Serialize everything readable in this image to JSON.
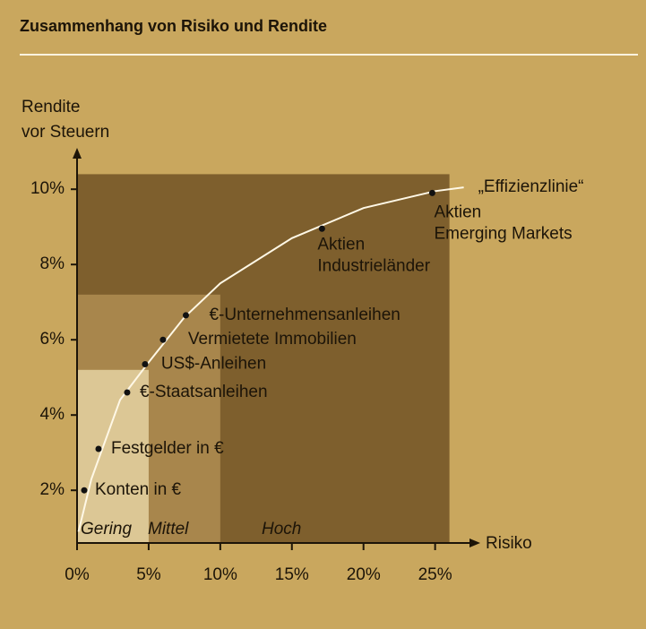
{
  "chart_data": {
    "type": "scatter",
    "title": "Zusammenhang von Risiko und Rendite",
    "y_label": [
      "Rendite",
      "vor Steuern"
    ],
    "x_label": "Risiko",
    "xlim": [
      0,
      27.4
    ],
    "ylim": [
      0.6,
      11.1
    ],
    "xticks": [
      {
        "value": 0,
        "label": "0%"
      },
      {
        "value": 5,
        "label": "5%"
      },
      {
        "value": 10,
        "label": "10%"
      },
      {
        "value": 15,
        "label": "15%"
      },
      {
        "value": 20,
        "label": "20%"
      },
      {
        "value": 25,
        "label": "25%"
      }
    ],
    "yticks": [
      {
        "value": 2,
        "label": "2%"
      },
      {
        "value": 4,
        "label": "4%"
      },
      {
        "value": 6,
        "label": "6%"
      },
      {
        "value": 8,
        "label": "8%"
      },
      {
        "value": 10,
        "label": "10%"
      }
    ],
    "zones": [
      {
        "label": "Hoch",
        "x": [
          0,
          26
        ],
        "y_max": 10.4,
        "color": "#7e5f2d"
      },
      {
        "label": "Mittel",
        "x": [
          0,
          10
        ],
        "y_max": 7.2,
        "color": "#a8864c"
      },
      {
        "label": "Gering",
        "x": [
          0,
          5
        ],
        "y_max": 5.2,
        "color": "#dcc795"
      }
    ],
    "series": [
      {
        "name": "„Effizienzlinie“",
        "type": "line",
        "color": "#fff8e6",
        "x": [
          0.1,
          1,
          3,
          5,
          7.5,
          10,
          15,
          20,
          25,
          27
        ],
        "values": [
          0.9,
          2.3,
          4.4,
          5.4,
          6.6,
          7.5,
          8.7,
          9.5,
          9.95,
          10.05
        ]
      },
      {
        "type": "scatter",
        "color": "#111111",
        "x": [
          0.5,
          1.5,
          3.5,
          4.75,
          6,
          7.6,
          17.1,
          24.8
        ],
        "values": [
          2.0,
          3.1,
          4.6,
          5.35,
          6.0,
          6.65,
          8.95,
          9.9
        ],
        "labels": [
          [
            "Konten in €"
          ],
          [
            "Festgelder in €"
          ],
          [
            "€-Staatsanleihen"
          ],
          [
            "US$-Anleihen"
          ],
          [
            "Vermietete Immobilien"
          ],
          [
            "€-Unternehmensanleihen"
          ],
          [
            "Aktien",
            "Industrieländer"
          ],
          [
            "Aktien",
            "Emerging Markets"
          ]
        ]
      }
    ]
  }
}
